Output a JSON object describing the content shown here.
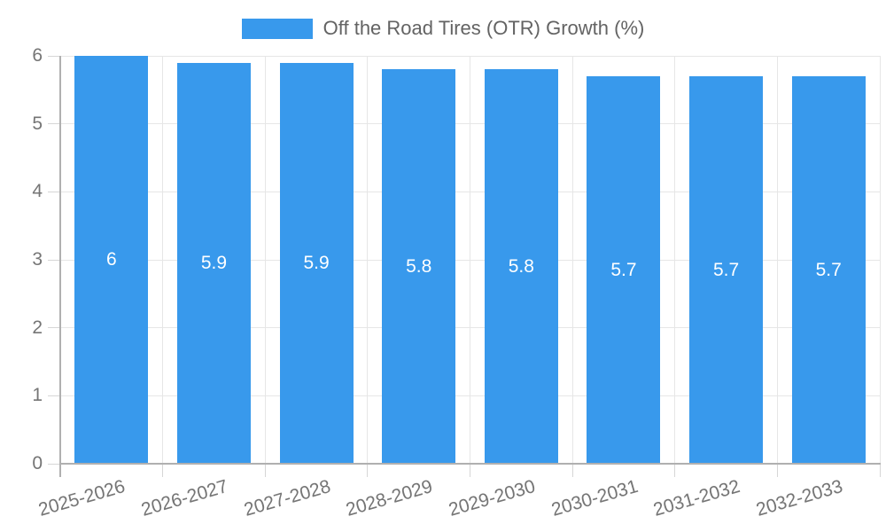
{
  "chart_data": {
    "type": "bar",
    "title": "",
    "legend_label": "Off the Road Tires (OTR) Growth (%)",
    "legend_position": "top",
    "categories": [
      "2025-2026",
      "2026-2027",
      "2027-2028",
      "2028-2029",
      "2029-2030",
      "2030-2031",
      "2031-2032",
      "2032-2033"
    ],
    "values": [
      6,
      5.9,
      5.9,
      5.8,
      5.8,
      5.7,
      5.7,
      5.7
    ],
    "value_labels": [
      "6",
      "5.9",
      "5.9",
      "5.8",
      "5.8",
      "5.7",
      "5.7",
      "5.7"
    ],
    "xlabel": "",
    "ylabel": "",
    "ylim": [
      0,
      6
    ],
    "yticks": [
      0,
      1,
      2,
      3,
      4,
      5,
      6
    ],
    "ytick_labels": [
      "0",
      "1",
      "2",
      "3",
      "4",
      "5",
      "6"
    ],
    "grid": true,
    "colors": {
      "bar": "#3899ec",
      "grid": "#e6e6e6",
      "axis": "#b0b0b0",
      "tick_mark": "#d6d6d6",
      "tick_label": "#757575",
      "legend_text": "#636363",
      "value_label": "#ffffff",
      "background": "#ffffff"
    }
  }
}
